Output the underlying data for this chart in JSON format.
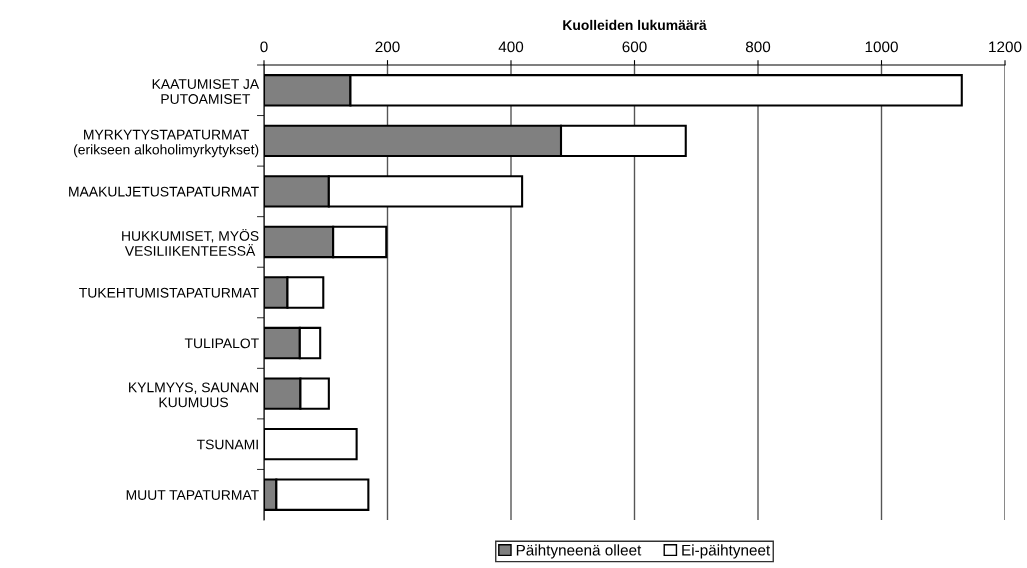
{
  "chart_data": {
    "type": "bar",
    "orientation": "horizontal",
    "stacked": true,
    "xlabel": "Kuolleiden lukumäärä",
    "categories": [
      "KAATUMISET JA\nPUTOAMISET",
      "MYRKYTYSTAPATURMAT\n(erikseen alkoholimyrkytykset)",
      "MAAKULJETUSTAPATURMAT",
      "HUKKUMISET, MYÖS\nVESILIIKENTEESSÄ",
      "TUKEHTUMISTAPATURMAT",
      "TULIPALOT",
      "KYLMYYS, SAUNAN\nKUUMUUS",
      "TSUNAMI",
      "MUUT TAPATURMAT"
    ],
    "series": [
      {
        "name": "Päihtyneenä olleet",
        "color": "#808080",
        "values": [
          140,
          481,
          105,
          112,
          38,
          58,
          59,
          0,
          20
        ]
      },
      {
        "name": "Ei-päihtyneet",
        "color": "#ffffff",
        "values": [
          990,
          202,
          313,
          86,
          58,
          33,
          46,
          150,
          149
        ]
      }
    ],
    "xlim": [
      0,
      1200
    ],
    "xticks": [
      0,
      200,
      400,
      600,
      800,
      1000,
      1200
    ],
    "grid": "x",
    "legend": "bottom"
  }
}
